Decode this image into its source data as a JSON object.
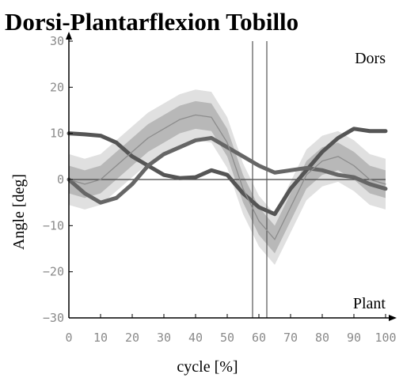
{
  "chart_data": {
    "type": "line",
    "title": "Dorsi-Plantarflexion Tobillo",
    "xlabel": "cycle [%]",
    "ylabel": "Angle [deg]",
    "annotations": [
      "Dors",
      "Plant"
    ],
    "x": [
      0,
      5,
      10,
      15,
      20,
      25,
      30,
      35,
      40,
      45,
      50,
      55,
      60,
      65,
      70,
      75,
      80,
      85,
      90,
      95,
      100
    ],
    "series": [
      {
        "color": "#555555",
        "values": [
          10,
          9.8,
          9.5,
          8,
          5,
          3,
          1,
          0.3,
          0.5,
          2,
          1,
          -3,
          -6,
          -7.5,
          -2,
          2,
          6,
          9,
          11,
          10.5,
          10.5
        ]
      },
      {
        "color": "#666666",
        "values": [
          0,
          -3,
          -5,
          -4,
          -1,
          3,
          5.5,
          7,
          8.5,
          9,
          7,
          5,
          3,
          1.5,
          2,
          2.5,
          2,
          1,
          0.5,
          -1,
          -2
        ]
      },
      {
        "color": "#8c8c8c",
        "values": [
          0,
          -1,
          0,
          3,
          6,
          9,
          11,
          13,
          14,
          13.5,
          8,
          -2,
          -9,
          -13,
          -6,
          1,
          4,
          5,
          3,
          0,
          -1
        ]
      }
    ],
    "bands": [
      {
        "color": "#e0e0e0",
        "upper": [
          5.5,
          4.5,
          5.5,
          8.5,
          11.5,
          14.5,
          16.5,
          18.5,
          19.5,
          19,
          13.5,
          3.5,
          -3.5,
          -7.5,
          -0.5,
          6.5,
          9.5,
          10.5,
          8.5,
          5.5,
          4.5
        ],
        "lower": [
          -5.5,
          -6.5,
          -5.5,
          -2.5,
          0.5,
          3.5,
          5.5,
          7.5,
          8.5,
          8,
          2.5,
          -7.5,
          -14.5,
          -18.5,
          -11.5,
          -4.5,
          -1.5,
          -0.5,
          -2.5,
          -5.5,
          -6.5
        ]
      },
      {
        "color": "#b8b8b8",
        "upper": [
          3,
          2,
          3,
          6,
          9,
          12,
          14,
          16,
          17,
          16.5,
          11,
          1,
          -6,
          -10,
          -3,
          4,
          7,
          8,
          6,
          3,
          2
        ],
        "lower": [
          -3,
          -4,
          -3,
          0,
          3,
          6,
          8,
          10,
          11,
          10.5,
          5,
          -5,
          -12,
          -16,
          -9,
          -2,
          1,
          2,
          0,
          -3,
          -4
        ]
      }
    ],
    "vlines": [
      58,
      62.5
    ],
    "hlines": [
      0
    ],
    "xlim": [
      0,
      100
    ],
    "xticks": [
      0,
      10,
      20,
      30,
      40,
      50,
      60,
      70,
      80,
      90,
      100
    ],
    "ylim": [
      -30,
      30
    ],
    "yticks": [
      30,
      20,
      10,
      0,
      {
        "value": -10,
        "label": "−10"
      },
      {
        "value": -20,
        "label": "−20"
      },
      {
        "value": -30,
        "label": "−30"
      }
    ]
  }
}
